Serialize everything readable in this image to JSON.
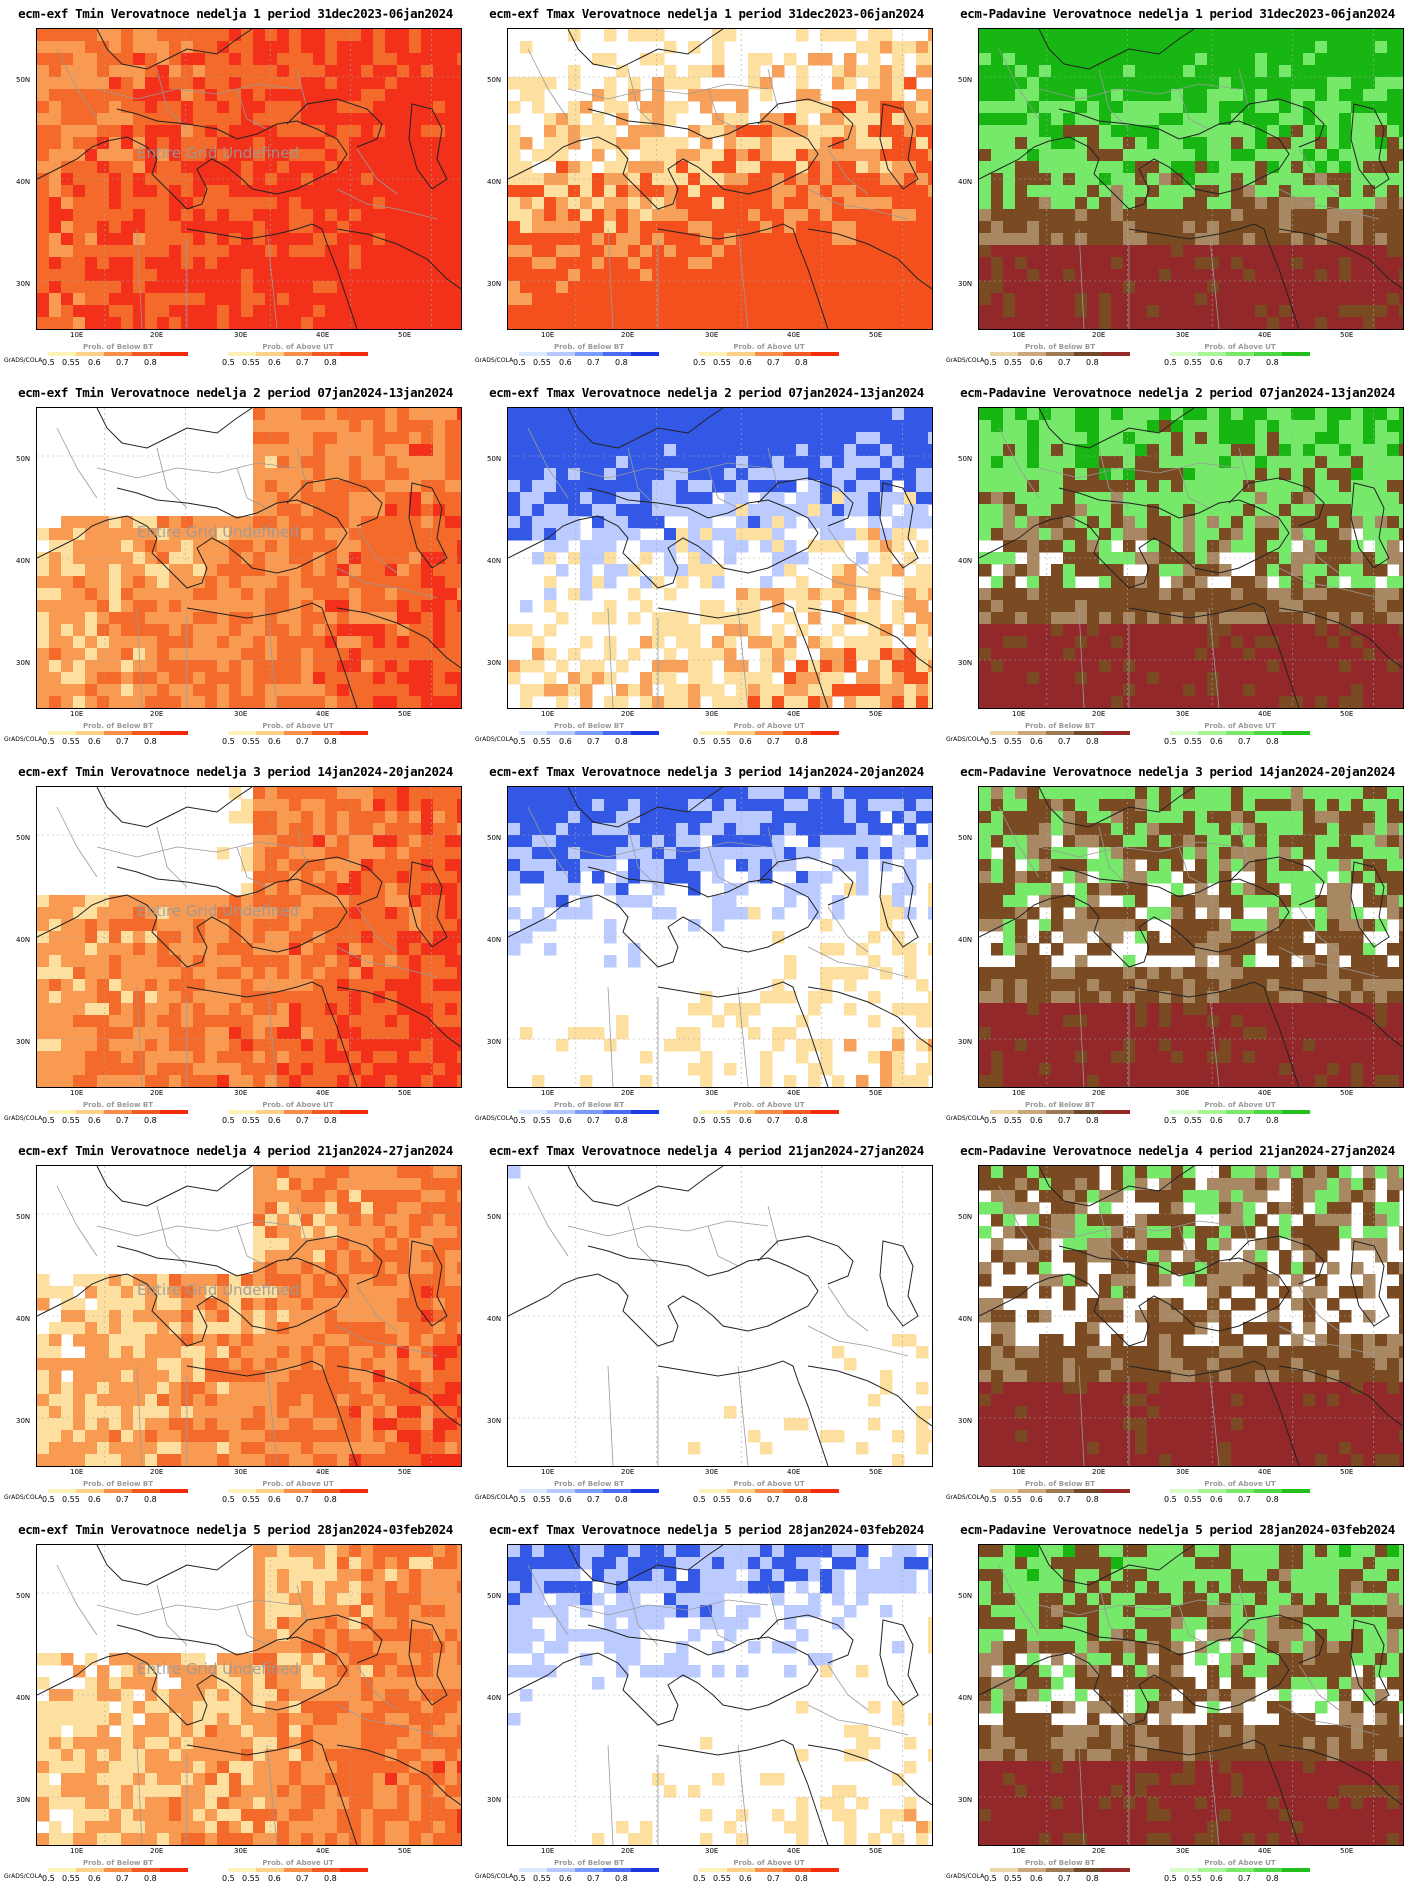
{
  "watermark": "Entire Grid Undefined",
  "lat_labels": [
    "50N",
    "40N",
    "30N"
  ],
  "lon_labels": [
    "10E",
    "20E",
    "30E",
    "40E",
    "50E"
  ],
  "legend": {
    "credit": "GrADS/COLA",
    "below_title": "Prob. of Below BT",
    "above_title": "Prob. of Above UT",
    "ticks": [
      "0.5",
      "0.55",
      "0.6",
      "0.7",
      "0.8"
    ],
    "colors": {
      "warm": [
        "#fff2b8",
        "#fdd187",
        "#f98e4a",
        "#f35a22",
        "#f22b0c"
      ],
      "cold": [
        "#dce8ff",
        "#b5c8ff",
        "#7d9cff",
        "#4c6cf4",
        "#1a37e0"
      ],
      "dry": [
        "#ecd6a6",
        "#caa67a",
        "#9c7a56",
        "#6e4a2a",
        "#962a26"
      ],
      "wet": [
        "#d6ffc8",
        "#a6f596",
        "#7ae96a",
        "#4ed744",
        "#22c01a"
      ]
    }
  },
  "fill_colors": {
    "tmin_low": "#fde0a0",
    "tmin_mid": "#f99a52",
    "tmin_high": "#f36a2a",
    "tmin_max": "#f3301a",
    "tmax_cold": "#3358e6",
    "tmax_coldlight": "#bccbff",
    "tmax_warm_light": "#fde0a0",
    "tmax_warm": "#f7a05a",
    "tmax_hot": "#f3501e",
    "pr_dry": "#7a4a22",
    "pr_drymid": "#a88862",
    "pr_dark": "#92282a",
    "pr_wet": "#76e86a",
    "pr_wet_dark": "#18b612"
  },
  "panels": [
    {
      "title": "ecm-exf Tmin Verovatnoce nedelja 1 period 31dec2023-06jan2024",
      "variable": "Tmin",
      "week": 1,
      "intensity": 0.95,
      "watermark": true
    },
    {
      "title": "ecm-exf Tmax Verovatnoce nedelja 1 period 31dec2023-06jan2024",
      "variable": "Tmax",
      "week": 1,
      "warm": 0.9,
      "cold": 0.1,
      "watermark": false
    },
    {
      "title": "ecm-Padavine Verovatnoce nedelja 1 period 31dec2023-06jan2024",
      "variable": "Padavine",
      "week": 1,
      "wet": 0.8,
      "watermark": false
    },
    {
      "title": "ecm-exf Tmin Verovatnoce nedelja 2 period 07jan2024-13jan2024",
      "variable": "Tmin",
      "week": 2,
      "intensity": 0.7,
      "watermark": true
    },
    {
      "title": "ecm-exf Tmax Verovatnoce nedelja 2 period 07jan2024-13jan2024",
      "variable": "Tmax",
      "week": 2,
      "warm": 0.5,
      "cold": 0.8,
      "watermark": false
    },
    {
      "title": "ecm-Padavine Verovatnoce nedelja 2 period 07jan2024-13jan2024",
      "variable": "Padavine",
      "week": 2,
      "wet": 0.55,
      "watermark": false
    },
    {
      "title": "ecm-exf Tmin Verovatnoce nedelja 3 period 14jan2024-20jan2024",
      "variable": "Tmin",
      "week": 3,
      "intensity": 0.75,
      "watermark": true
    },
    {
      "title": "ecm-exf Tmax Verovatnoce nedelja 3 period 14jan2024-20jan2024",
      "variable": "Tmax",
      "week": 3,
      "warm": 0.35,
      "cold": 0.7,
      "watermark": false
    },
    {
      "title": "ecm-Padavine Verovatnoce nedelja 3 period 14jan2024-20jan2024",
      "variable": "Padavine",
      "week": 3,
      "wet": 0.4,
      "watermark": false
    },
    {
      "title": "ecm-exf Tmin Verovatnoce nedelja 4 period 21jan2024-27jan2024",
      "variable": "Tmin",
      "week": 4,
      "intensity": 0.65,
      "watermark": true
    },
    {
      "title": "ecm-exf Tmax Verovatnoce nedelja 4 period 21jan2024-27jan2024",
      "variable": "Tmax",
      "week": 4,
      "warm": 0.25,
      "cold": 0.3,
      "watermark": false
    },
    {
      "title": "ecm-Padavine Verovatnoce nedelja 4 period 21jan2024-27jan2024",
      "variable": "Padavine",
      "week": 4,
      "wet": 0.3,
      "watermark": false
    },
    {
      "title": "ecm-exf Tmin Verovatnoce nedelja 5 period 28jan2024-03feb2024",
      "variable": "Tmin",
      "week": 5,
      "intensity": 0.6,
      "watermark": true
    },
    {
      "title": "ecm-exf Tmax Verovatnoce nedelja 5 period 28jan2024-03feb2024",
      "variable": "Tmax",
      "week": 5,
      "warm": 0.3,
      "cold": 0.6,
      "watermark": false
    },
    {
      "title": "ecm-Padavine Verovatnoce nedelja 5 period 28jan2024-03feb2024",
      "variable": "Padavine",
      "week": 5,
      "wet": 0.45,
      "watermark": false
    }
  ]
}
